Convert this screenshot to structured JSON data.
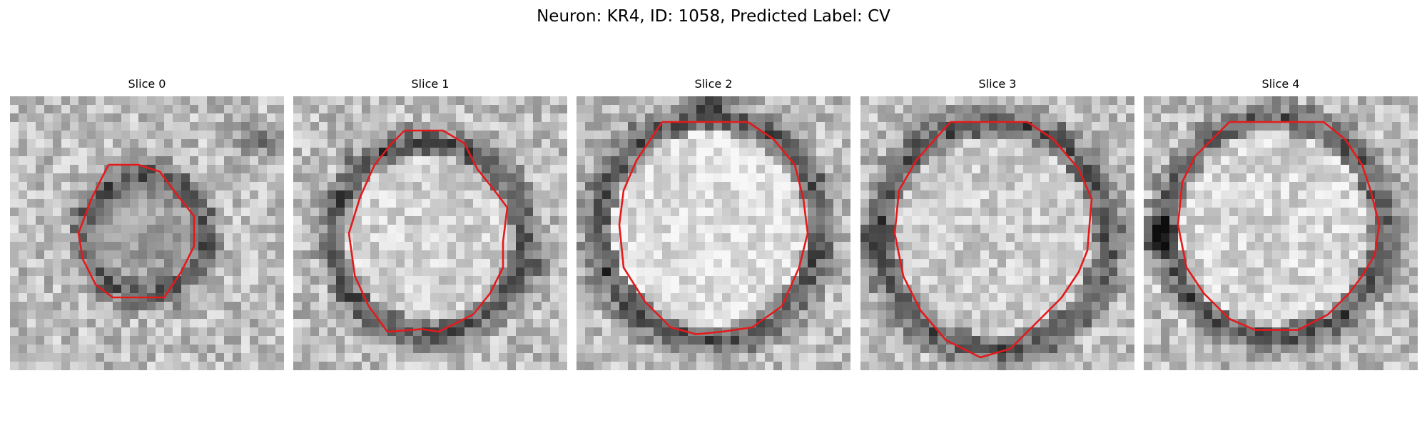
{
  "figure": {
    "title": "Neuron: KR4, ID: 1058, Predicted Label: CV"
  },
  "colors": {
    "contour": "#e31a1c",
    "background": "#ffffff"
  },
  "slices": [
    {
      "label": "Slice 0"
    },
    {
      "label": "Slice 1"
    },
    {
      "label": "Slice 2"
    },
    {
      "label": "Slice 3"
    },
    {
      "label": "Slice 4"
    }
  ]
}
